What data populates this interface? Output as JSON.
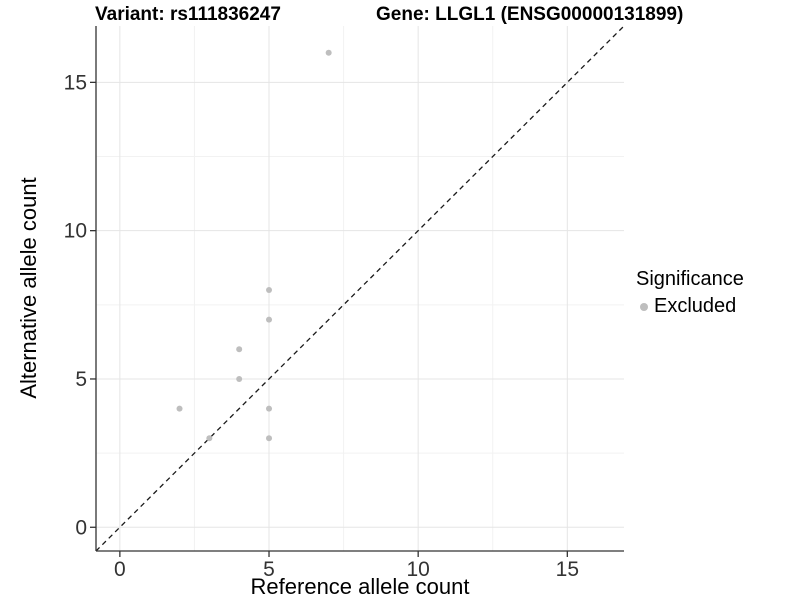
{
  "header": {
    "variant_title": "Variant: rs111836247",
    "gene_title": "Gene: LLGL1 (ENSG00000131899)"
  },
  "legend": {
    "title": "Significance",
    "items": [
      {
        "label": "Excluded",
        "color": "#bebebe"
      }
    ]
  },
  "chart_data": {
    "type": "scatter",
    "xlabel": "Reference allele count",
    "ylabel": "Alternative allele count",
    "x_ticks": [
      0,
      5,
      10,
      15
    ],
    "y_ticks": [
      0,
      5,
      10,
      15
    ],
    "x_minor_ticks": [
      2.5,
      7.5,
      12.5
    ],
    "y_minor_ticks": [
      2.5,
      7.5,
      12.5
    ],
    "xlim": [
      -0.8,
      16.9
    ],
    "ylim": [
      -0.8,
      16.9
    ],
    "grid": "major+minor",
    "legend_position": "right",
    "series": [
      {
        "name": "Excluded",
        "color": "#bebebe",
        "points": [
          [
            2,
            4
          ],
          [
            3,
            3
          ],
          [
            4,
            5
          ],
          [
            4,
            6
          ],
          [
            5,
            3
          ],
          [
            5,
            4
          ],
          [
            5,
            7
          ],
          [
            5,
            8
          ],
          [
            7,
            16
          ]
        ]
      }
    ],
    "reference_line": {
      "equation": "y = x",
      "style": "dashed",
      "color": "#1a1a1a"
    },
    "colors": {
      "major_grid": "#e5e5e5",
      "minor_grid": "#f2f2f2",
      "axis_line": "#333333",
      "tick_label": "#333333"
    }
  }
}
